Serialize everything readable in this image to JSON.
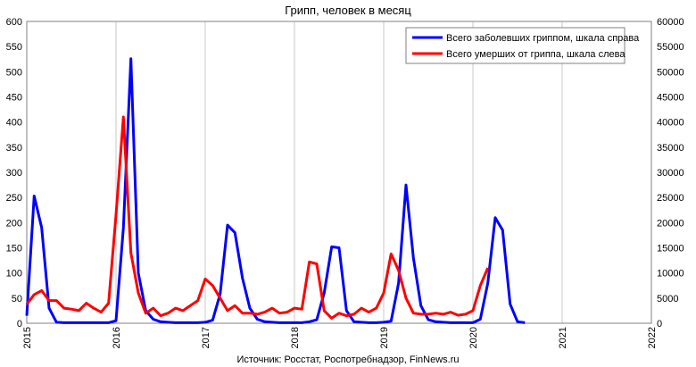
{
  "chart_data": {
    "type": "line",
    "title": "Грипп, человек в месяц",
    "source": "Источник: Росстат, Роспотребнадзор, FinNews.ru",
    "x_ticks": [
      "2015",
      "2016",
      "2017",
      "2018",
      "2019",
      "2020",
      "2021",
      "2022"
    ],
    "xlim": [
      2015,
      2022
    ],
    "ylim_left": [
      0,
      600
    ],
    "ylim_right": [
      0,
      60000
    ],
    "y_ticks_left": [
      "0",
      "50",
      "100",
      "150",
      "200",
      "250",
      "300",
      "350",
      "400",
      "450",
      "500",
      "550",
      "600"
    ],
    "y_ticks_right": [
      "0",
      "5000",
      "10000",
      "15000",
      "20000",
      "25000",
      "30000",
      "35000",
      "40000",
      "45000",
      "50000",
      "55000",
      "60000"
    ],
    "grid": "vertical",
    "legend_position": "top-right",
    "colors": {
      "infected": "#0000ff",
      "deaths": "#ff0000",
      "grid": "#c8c8c8"
    },
    "series": [
      {
        "name": "Всего заболевших гриппом, шкала справа",
        "axis": "right",
        "x": [
          2015.0,
          2015.083,
          2015.167,
          2015.25,
          2015.333,
          2015.417,
          2015.5,
          2015.583,
          2015.667,
          2015.75,
          2015.833,
          2015.917,
          2016.0,
          2016.083,
          2016.167,
          2016.25,
          2016.333,
          2016.417,
          2016.5,
          2016.583,
          2016.667,
          2016.75,
          2016.833,
          2016.917,
          2017.0,
          2017.083,
          2017.167,
          2017.25,
          2017.333,
          2017.417,
          2017.5,
          2017.583,
          2017.667,
          2017.75,
          2017.833,
          2017.917,
          2018.0,
          2018.083,
          2018.167,
          2018.25,
          2018.333,
          2018.417,
          2018.5,
          2018.583,
          2018.667,
          2018.75,
          2018.833,
          2018.917,
          2019.0,
          2019.083,
          2019.167,
          2019.25,
          2019.333,
          2019.417,
          2019.5,
          2019.583,
          2019.667,
          2019.75,
          2019.833,
          2019.917,
          2020.0,
          2020.083,
          2020.167,
          2020.25,
          2020.333,
          2020.417,
          2020.5,
          2020.583
        ],
        "values": [
          1500,
          25300,
          19000,
          3000,
          200,
          100,
          100,
          100,
          100,
          100,
          100,
          100,
          500,
          19000,
          52600,
          10000,
          2500,
          800,
          300,
          200,
          100,
          100,
          100,
          100,
          200,
          600,
          5800,
          19500,
          18000,
          9000,
          3000,
          800,
          300,
          200,
          100,
          100,
          100,
          100,
          300,
          700,
          6000,
          15200,
          15000,
          2500,
          300,
          200,
          100,
          100,
          200,
          400,
          8000,
          27500,
          13000,
          3500,
          700,
          300,
          200,
          100,
          100,
          100,
          100,
          800,
          8000,
          21000,
          18500,
          3800,
          300,
          100
        ]
      },
      {
        "name": "Всего умерших от гриппа, шкала слева",
        "axis": "left",
        "x": [
          2015.0,
          2015.083,
          2015.167,
          2015.25,
          2015.333,
          2015.417,
          2015.5,
          2015.583,
          2015.667,
          2015.75,
          2015.833,
          2015.917,
          2016.0,
          2016.083,
          2016.167,
          2016.25,
          2016.333,
          2016.417,
          2016.5,
          2016.583,
          2016.667,
          2016.75,
          2016.833,
          2016.917,
          2017.0,
          2017.083,
          2017.167,
          2017.25,
          2017.333,
          2017.417,
          2017.5,
          2017.583,
          2017.667,
          2017.75,
          2017.833,
          2017.917,
          2018.0,
          2018.083,
          2018.167,
          2018.25,
          2018.333,
          2018.417,
          2018.5,
          2018.583,
          2018.667,
          2018.75,
          2018.833,
          2018.917,
          2019.0,
          2019.083,
          2019.167,
          2019.25,
          2019.333,
          2019.417,
          2019.5,
          2019.583,
          2019.667,
          2019.75,
          2019.833,
          2019.917,
          2020.0,
          2020.083,
          2020.167
        ],
        "values": [
          38,
          57,
          65,
          45,
          45,
          30,
          28,
          25,
          40,
          30,
          22,
          40,
          215,
          410,
          140,
          60,
          20,
          30,
          15,
          20,
          30,
          25,
          35,
          45,
          88,
          75,
          50,
          25,
          35,
          20,
          20,
          18,
          22,
          30,
          20,
          22,
          30,
          28,
          122,
          118,
          25,
          10,
          20,
          15,
          18,
          30,
          22,
          30,
          60,
          138,
          105,
          50,
          20,
          18,
          18,
          20,
          18,
          22,
          16,
          18,
          25,
          75,
          110
        ]
      }
    ]
  }
}
